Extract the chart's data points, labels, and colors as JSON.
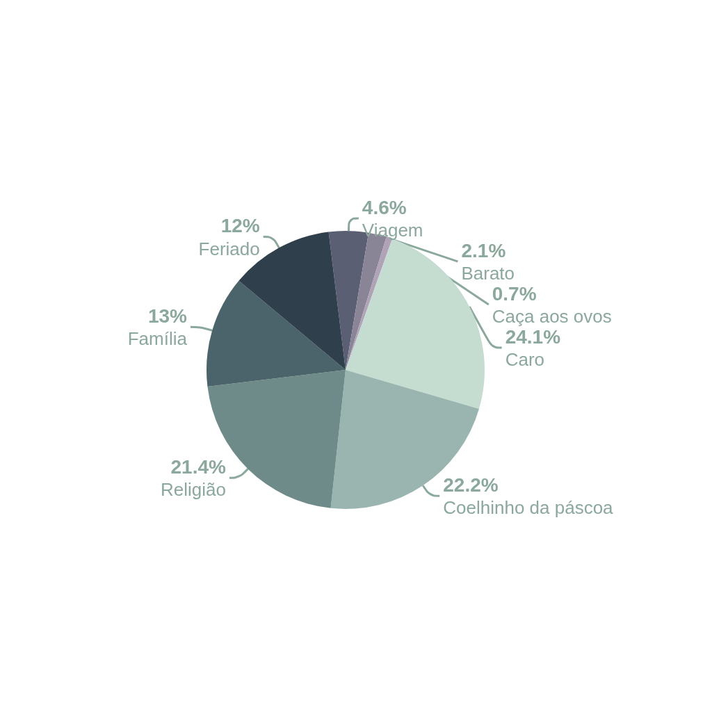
{
  "chart_data": {
    "type": "pie",
    "categories": [
      "Viagem",
      "Barato",
      "Caça aos ovos",
      "Caro",
      "Coelhinho da páscoa",
      "Religião",
      "Família",
      "Feriado"
    ],
    "values": [
      4.6,
      2.1,
      0.7,
      24.1,
      22.2,
      21.4,
      13,
      12
    ],
    "value_labels": [
      "4.6%",
      "2.1%",
      "0.7%",
      "24.1%",
      "22.2%",
      "21.4%",
      "13%",
      "12%"
    ],
    "colors": [
      "#5a5f73",
      "#8a8596",
      "#b0a3b8",
      "#c5ddd0",
      "#9ab5b0",
      "#6e8b8a",
      "#4b646b",
      "#2f3f4c"
    ],
    "legend": false
  }
}
